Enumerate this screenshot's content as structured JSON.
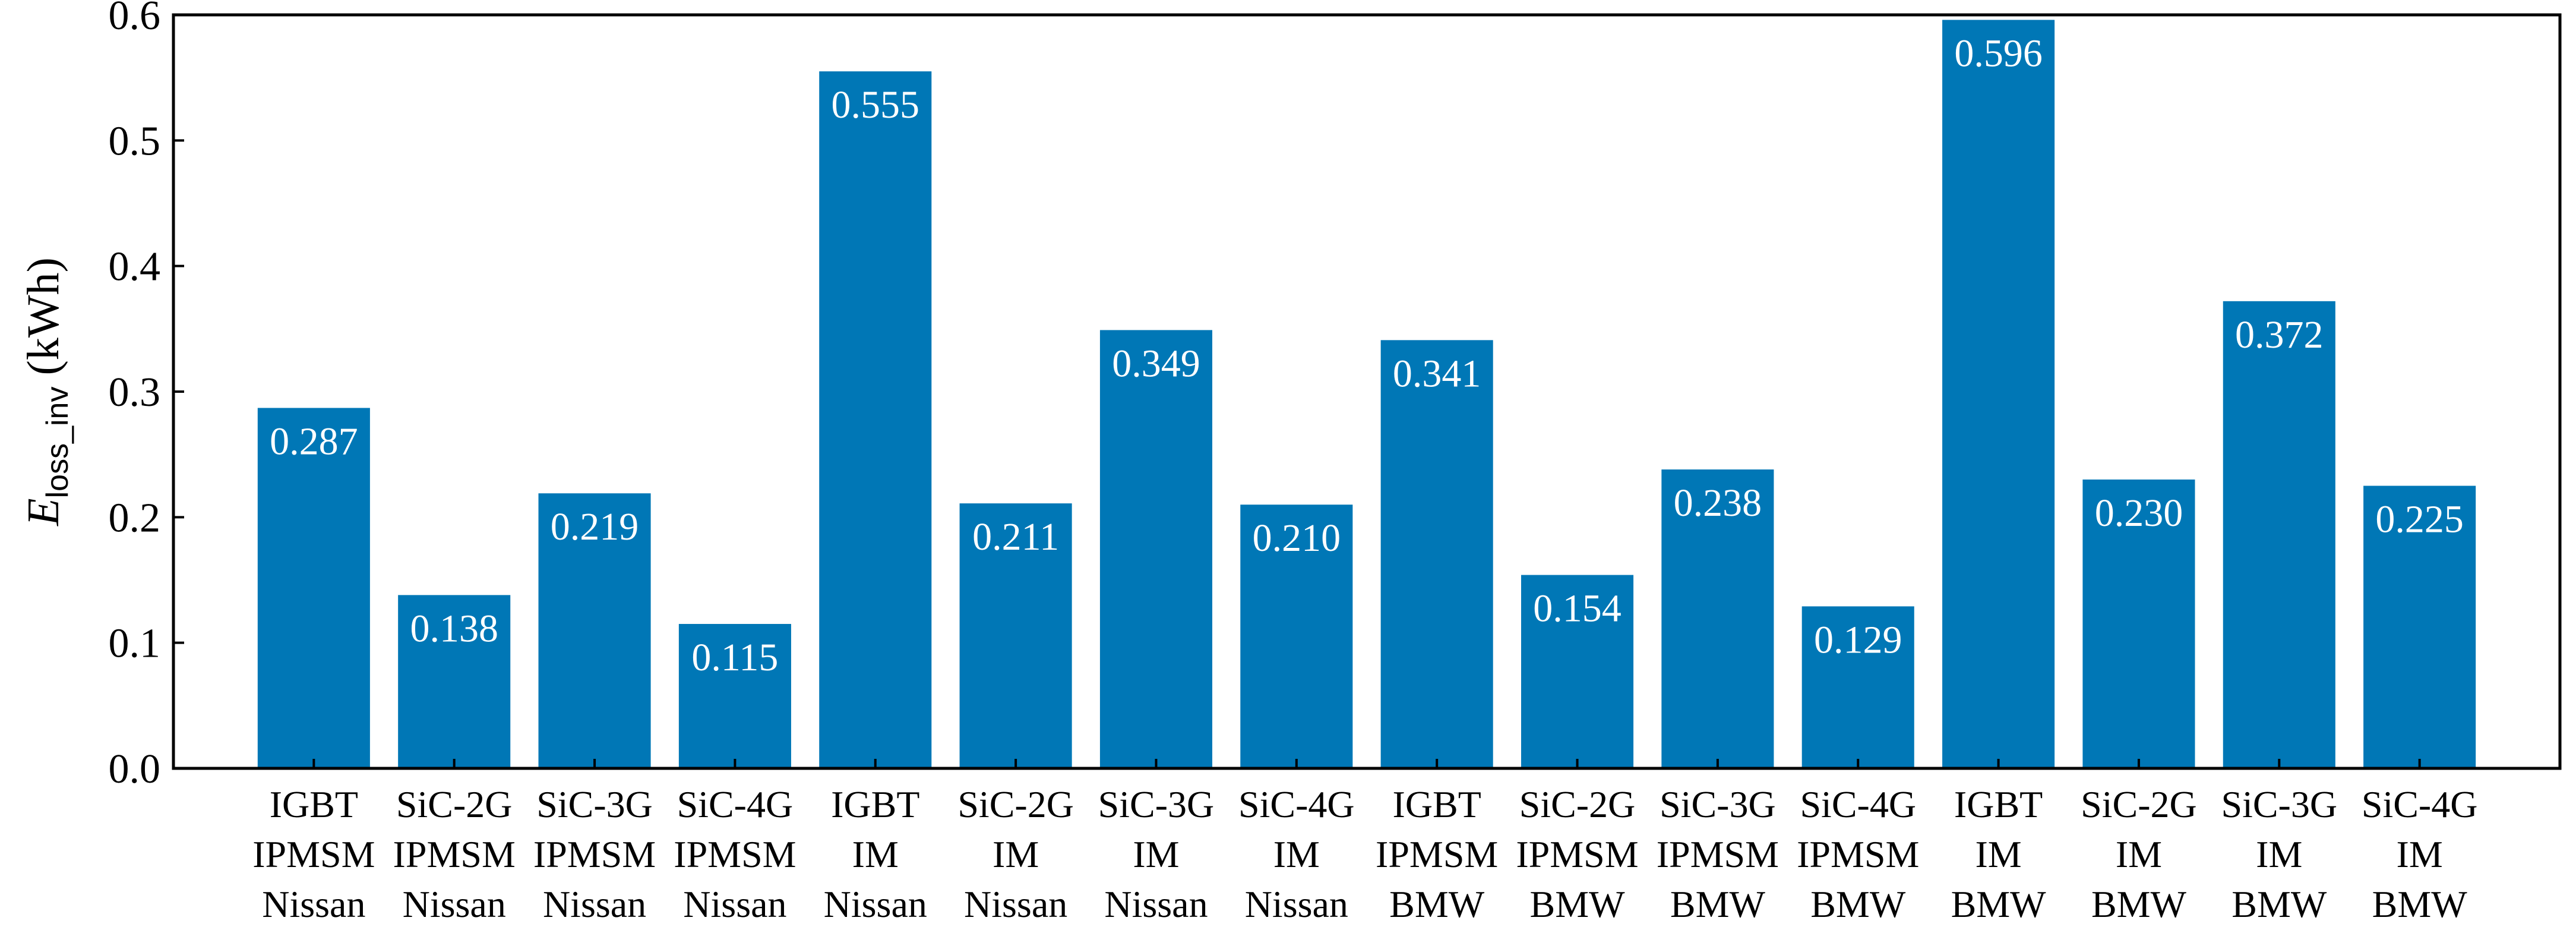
{
  "chart_data": {
    "type": "bar",
    "ylabel_main": "E",
    "ylabel_sub": "loss_inv",
    "ylabel_unit": " (kWh)",
    "ylim": [
      0,
      0.6
    ],
    "yticks": [
      "0.0",
      "0.1",
      "0.2",
      "0.3",
      "0.4",
      "0.5",
      "0.6"
    ],
    "bar_color": "#0077b6",
    "grid": false,
    "legend": "none",
    "categories": [
      [
        "IGBT",
        "IPMSM",
        "Nissan"
      ],
      [
        "SiC-2G",
        "IPMSM",
        "Nissan"
      ],
      [
        "SiC-3G",
        "IPMSM",
        "Nissan"
      ],
      [
        "SiC-4G",
        "IPMSM",
        "Nissan"
      ],
      [
        "IGBT",
        "IM",
        "Nissan"
      ],
      [
        "SiC-2G",
        "IM",
        "Nissan"
      ],
      [
        "SiC-3G",
        "IM",
        "Nissan"
      ],
      [
        "SiC-4G",
        "IM",
        "Nissan"
      ],
      [
        "IGBT",
        "IPMSM",
        "BMW"
      ],
      [
        "SiC-2G",
        "IPMSM",
        "BMW"
      ],
      [
        "SiC-3G",
        "IPMSM",
        "BMW"
      ],
      [
        "SiC-4G",
        "IPMSM",
        "BMW"
      ],
      [
        "IGBT",
        "IM",
        "BMW"
      ],
      [
        "SiC-2G",
        "IM",
        "BMW"
      ],
      [
        "SiC-3G",
        "IM",
        "BMW"
      ],
      [
        "SiC-4G",
        "IM",
        "BMW"
      ]
    ],
    "values": [
      0.287,
      0.138,
      0.219,
      0.115,
      0.555,
      0.211,
      0.349,
      0.21,
      0.341,
      0.154,
      0.238,
      0.129,
      0.596,
      0.23,
      0.372,
      0.225
    ],
    "value_labels": [
      "0.287",
      "0.138",
      "0.219",
      "0.115",
      "0.555",
      "0.211",
      "0.349",
      "0.210",
      "0.341",
      "0.154",
      "0.238",
      "0.129",
      "0.596",
      "0.230",
      "0.372",
      "0.225"
    ]
  }
}
